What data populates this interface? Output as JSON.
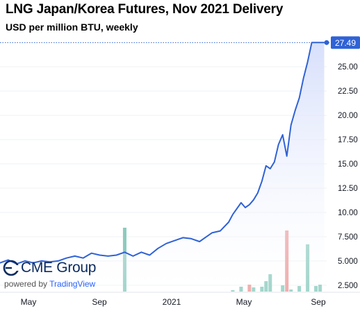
{
  "header": {
    "title": "LNG Japan/Korea Futures, Nov 2021 Delivery",
    "subtitle": "USD per million BTU, weekly"
  },
  "branding": {
    "logo_text": "CME Group",
    "powered_prefix": "powered by",
    "powered_brand": "TradingView"
  },
  "colors": {
    "line": "#2f62d6",
    "area_top": "#d5defb",
    "volume_up": "#8ccbbf",
    "volume_down": "#ec9a9a",
    "last_price_bg": "#2f62d6",
    "grid": "#eef0f4"
  },
  "chart_data": {
    "type": "line",
    "title": "LNG Japan/Korea Futures, Nov 2021 Delivery",
    "subtitle": "USD per million BTU, weekly",
    "x_tick_labels": [
      "May",
      "Sep",
      "2021",
      "May",
      "Sep"
    ],
    "y_tick_labels": [
      "2.500",
      "5.000",
      "7.500",
      "10.00",
      "12.50",
      "15.00",
      "17.50",
      "20.00",
      "22.50",
      "25.00"
    ],
    "ylim": [
      1.85,
      28.3
    ],
    "last_value_label": "27.49",
    "grid": false,
    "series": [
      {
        "type": "line",
        "x": [
          "2020-02-28",
          "2020-03-14",
          "2020-03-28",
          "2020-04-11",
          "2020-04-25",
          "2020-05-09",
          "2020-05-23",
          "2020-06-06",
          "2020-06-20",
          "2020-07-04",
          "2020-07-18",
          "2020-08-01",
          "2020-08-15",
          "2020-08-29",
          "2020-09-12",
          "2020-09-26",
          "2020-10-10",
          "2020-10-24",
          "2020-11-07",
          "2020-11-21",
          "2020-12-05",
          "2020-12-19",
          "2021-01-02",
          "2021-01-16",
          "2021-01-30",
          "2021-02-13",
          "2021-02-27",
          "2021-03-06",
          "2021-03-20",
          "2021-04-03",
          "2021-04-10",
          "2021-04-24",
          "2021-05-01",
          "2021-05-08",
          "2021-05-15",
          "2021-05-22",
          "2021-05-29",
          "2021-06-05",
          "2021-06-12",
          "2021-06-19",
          "2021-06-26",
          "2021-07-03",
          "2021-07-10",
          "2021-07-17",
          "2021-07-24",
          "2021-07-31",
          "2021-08-07",
          "2021-08-14",
          "2021-08-21",
          "2021-08-28",
          "2021-09-04",
          "2021-09-11"
        ],
        "values": [
          4.9,
          4.8,
          5.1,
          4.7,
          5.0,
          4.8,
          5.0,
          4.9,
          5.0,
          5.3,
          5.5,
          5.3,
          5.8,
          5.6,
          5.5,
          5.6,
          5.9,
          5.5,
          5.9,
          5.6,
          6.3,
          6.8,
          7.1,
          7.4,
          7.3,
          7.0,
          7.6,
          7.9,
          8.1,
          9.0,
          9.8,
          11.0,
          10.5,
          10.8,
          11.3,
          12.0,
          13.2,
          14.8,
          14.5,
          15.2,
          17.0,
          18.0,
          15.8,
          19.0,
          20.5,
          21.8,
          23.8,
          25.5,
          27.49,
          27.49,
          27.49,
          27.49
        ]
      },
      {
        "name": "",
        "type": "bar",
        "axis": "volume",
        "x": [
          "2020-10-10",
          "2021-04-10",
          "2021-04-24",
          "2021-05-08",
          "2021-05-15",
          "2021-05-29",
          "2021-06-05",
          "2021-06-12",
          "2021-07-03",
          "2021-07-10",
          "2021-07-17",
          "2021-07-31",
          "2021-08-14",
          "2021-08-28",
          "2021-09-04"
        ],
        "values": [
          92,
          2,
          7,
          10,
          6,
          7,
          15,
          25,
          9,
          88,
          3,
          8,
          68,
          8,
          10
        ],
        "direction": [
          "up",
          "up",
          "up",
          "down",
          "up",
          "up",
          "up",
          "up",
          "up",
          "down",
          "up",
          "up",
          "up",
          "up",
          "up"
        ]
      }
    ]
  }
}
